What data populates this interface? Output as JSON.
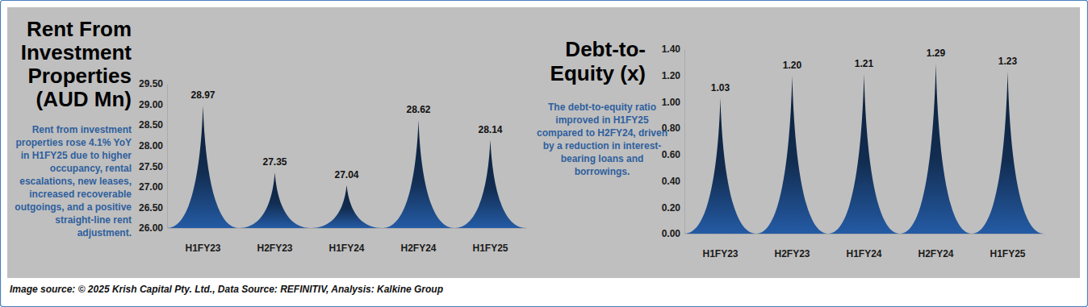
{
  "chart_data": [
    {
      "type": "bar",
      "title": "Rent From Investment Properties (AUD Mn)",
      "annotation": "Rent from investment properties rose 4.1% YoY in H1FY25 due to higher occupancy, rental escalations, new leases, increased recoverable outgoings, and a positive straight-line rent adjustment.",
      "categories": [
        "H1FY23",
        "H2FY23",
        "H1FY24",
        "H2FY24",
        "H1FY25"
      ],
      "values": [
        28.97,
        27.35,
        27.04,
        28.62,
        28.14
      ],
      "color": "#1f4f8f",
      "ylim": [
        26,
        29.5
      ],
      "yticks": [
        {
          "value": 26,
          "label": "26.00"
        },
        {
          "value": 26.5,
          "label": "26.50"
        },
        {
          "value": 27,
          "label": "27.00"
        },
        {
          "value": 27.5,
          "label": "27.50"
        },
        {
          "value": 28,
          "label": "28.00"
        },
        {
          "value": 28.5,
          "label": "28.50"
        },
        {
          "value": 29,
          "label": "29.00"
        },
        {
          "value": 29.5,
          "label": "29.50"
        }
      ],
      "grid": false,
      "data_labels": true
    },
    {
      "type": "bar",
      "title": "Debt-to-Equity (x)",
      "annotation": "The debt-to-equity ratio improved in H1FY25 compared to H2FY24, driven by a reduction in interest-bearing loans and borrowings.",
      "categories": [
        "H1FY23",
        "H2FY23",
        "H1FY24",
        "H2FY24",
        "H1FY25"
      ],
      "values": [
        1.03,
        1.2,
        1.21,
        1.29,
        1.23
      ],
      "value_labels": [
        "1.03",
        "1.20",
        "1.21",
        "1.29",
        "1.23"
      ],
      "color": "#1f4f8f",
      "ylim": [
        0,
        1.4
      ],
      "yticks": [
        {
          "value": 0,
          "label": "0.00"
        },
        {
          "value": 0.2,
          "label": "0.20"
        },
        {
          "value": 0.4,
          "label": "0.40"
        },
        {
          "value": 0.6,
          "label": "0.60"
        },
        {
          "value": 0.8,
          "label": "0.80"
        },
        {
          "value": 1,
          "label": "1.00"
        },
        {
          "value": 1.2,
          "label": "1.20"
        },
        {
          "value": 1.4,
          "label": "1.40"
        }
      ],
      "grid": false,
      "data_labels": true
    }
  ],
  "footer": "Image source: © 2025 Krish Capital Pty. Ltd., Data Source: REFINITIV, Analysis: Kalkine Group"
}
